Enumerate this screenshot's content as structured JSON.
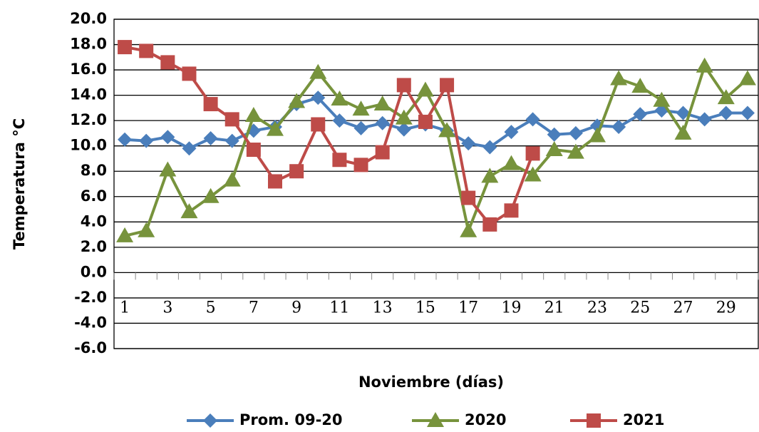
{
  "chart_data": {
    "type": "line",
    "x_label": "Noviembre (días)",
    "y_label": "Temperatura °C",
    "categories": [
      "1",
      null,
      "3",
      null,
      "5",
      null,
      "7",
      null,
      "9",
      null,
      "11",
      null,
      "13",
      null,
      "15",
      null,
      "17",
      null,
      "19",
      null,
      "21",
      null,
      "23",
      null,
      "25",
      null,
      "27",
      null,
      "29",
      null
    ],
    "series": [
      {
        "name": "Prom. 09-20",
        "color": "#4a7ebb",
        "marker": "diamond",
        "values": [
          10.5,
          10.4,
          10.7,
          9.8,
          10.6,
          10.4,
          11.2,
          11.5,
          13.3,
          13.8,
          12.0,
          11.4,
          11.8,
          11.3,
          11.7,
          11.2,
          10.2,
          9.9,
          11.1,
          12.1,
          10.9,
          11.0,
          11.6,
          11.5,
          12.5,
          12.8,
          12.6,
          12.1,
          12.6,
          12.6
        ]
      },
      {
        "name": "2020",
        "color": "#77933c",
        "marker": "triangle",
        "values": [
          2.9,
          3.3,
          8.1,
          4.8,
          6.0,
          7.3,
          12.4,
          11.3,
          13.5,
          15.8,
          13.7,
          12.9,
          13.3,
          12.2,
          14.4,
          11.2,
          3.3,
          7.6,
          8.6,
          7.7,
          9.7,
          9.5,
          10.8,
          15.3,
          14.7,
          13.6,
          11.0,
          16.3,
          13.8,
          15.3
        ]
      },
      {
        "name": "2021",
        "color": "#be4b48",
        "marker": "square",
        "values": [
          17.8,
          17.5,
          16.6,
          15.7,
          13.3,
          12.1,
          9.7,
          7.2,
          8.0,
          11.7,
          8.9,
          8.5,
          9.5,
          14.8,
          11.9,
          14.8,
          5.9,
          3.8,
          4.9,
          9.4,
          null,
          null,
          null,
          null,
          null,
          null,
          null,
          null,
          null,
          null
        ]
      }
    ],
    "ylim": [
      -6,
      20
    ],
    "yticks": [
      {
        "value": -6,
        "label": "-6.0"
      },
      {
        "value": -4,
        "label": "-4.0"
      },
      {
        "value": -2,
        "label": "-2.0"
      },
      {
        "value": 0,
        "label": "0.0"
      },
      {
        "value": 2,
        "label": "2.0"
      },
      {
        "value": 4,
        "label": "4.0"
      },
      {
        "value": 6,
        "label": "6.0"
      },
      {
        "value": 8,
        "label": "8.0"
      },
      {
        "value": 10,
        "label": "10.0"
      },
      {
        "value": 12,
        "label": "12.0"
      },
      {
        "value": 14,
        "label": "14.0"
      },
      {
        "value": 16,
        "label": "16.0"
      },
      {
        "value": 18,
        "label": "18.0"
      },
      {
        "value": 20,
        "label": "20.0"
      }
    ],
    "grid": true,
    "legend": "bottom"
  }
}
